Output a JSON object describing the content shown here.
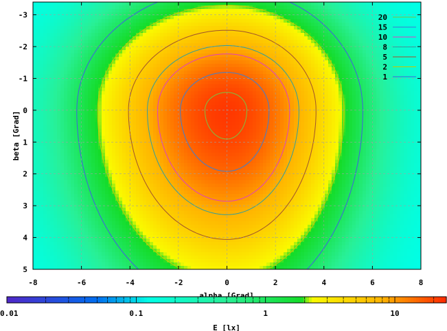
{
  "chart_data": {
    "type": "heatmap",
    "xlabel": "alpha [Grad]",
    "ylabel": "beta [Grad]",
    "xlim": [
      -8,
      8
    ],
    "ylim": [
      -3.4,
      5
    ],
    "x_ticks": [
      -8,
      -6,
      -4,
      -2,
      0,
      2,
      4,
      6,
      8
    ],
    "y_ticks": [
      -3,
      -2,
      -1,
      0,
      1,
      2,
      3,
      4,
      5
    ],
    "y_axis_inverted": true,
    "grid": true,
    "legend_position": "top-right",
    "contour_levels": [
      {
        "label": "20",
        "value": 20,
        "color": "#7cc242"
      },
      {
        "label": "15",
        "value": 15,
        "color": "#3a7fd5"
      },
      {
        "label": "10",
        "value": 10,
        "color": "#e040c0"
      },
      {
        "label": "8",
        "value": 8,
        "color": "#2f9e9e"
      },
      {
        "label": "5",
        "value": 5,
        "color": "#a0522d"
      },
      {
        "label": "2",
        "value": 2,
        "color": "#c8c800"
      },
      {
        "label": "1",
        "value": 1,
        "color": "#4060e0"
      }
    ],
    "colorbar": {
      "label": "E [lx]",
      "scale": "log",
      "range": [
        0.01,
        25
      ],
      "tick_labels": [
        {
          "value": 0.01,
          "label": "0.01"
        },
        {
          "value": 0.1,
          "label": "0.1"
        },
        {
          "value": 1,
          "label": "1"
        },
        {
          "value": 10,
          "label": "10"
        }
      ]
    },
    "model": {
      "peak": 22,
      "center": [
        0,
        0
      ],
      "sigma_x_left": 4.2,
      "sigma_x_right": 3.8,
      "sigma_y_up": 2.6,
      "sigma_y_down": 4.2
    }
  }
}
